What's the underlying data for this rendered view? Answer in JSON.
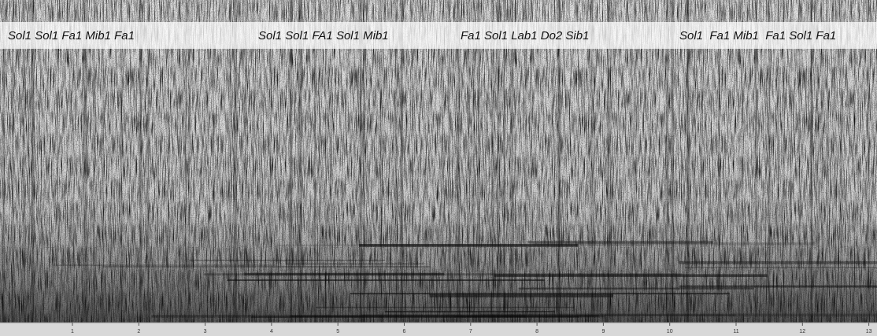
{
  "annotations": [
    "Sol1 Sol1 Fa1 Mib1 Fa1",
    "Sol1 Sol1 FA1 Sol1 Mib1",
    "Fa1 Sol1 Lab1 Do2 Sib1",
    "Sol1  Fa1 Mib1  Fa1 Sol1 Fa1"
  ],
  "time_axis": {
    "ticks": [
      1,
      2,
      3,
      4,
      5,
      6,
      7,
      8,
      9,
      10,
      11,
      12,
      13
    ]
  }
}
